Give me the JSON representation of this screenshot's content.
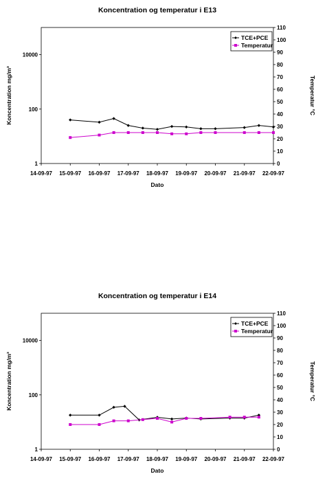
{
  "chart_data": [
    {
      "type": "line",
      "title": "Koncentration og temperatur i E13",
      "xlabel": "Dato",
      "ylabel": "Koncentration mg/m³",
      "y2label": "Temperatur °C",
      "x_ticks": [
        "14-09-97",
        "15-09-97",
        "16-09-97",
        "17-09-97",
        "18-09-97",
        "19-09-97",
        "20-09-97",
        "21-09-97",
        "22-09-97"
      ],
      "xlim": [
        "1997-09-14",
        "1997-09-22"
      ],
      "ylim": [
        1,
        100000
      ],
      "yscale": "log",
      "y_ticks": [
        "1",
        "100",
        "10000"
      ],
      "y2lim": [
        0,
        110
      ],
      "y2_ticks": [
        0,
        10,
        20,
        30,
        40,
        50,
        60,
        70,
        80,
        90,
        100,
        110
      ],
      "legend": "top-right",
      "series": [
        {
          "name": "TCE+PCE",
          "axis": "left",
          "color": "#000000",
          "marker": "diamond",
          "x": [
            "1997-09-15T00:00",
            "1997-09-16T00:00",
            "1997-09-16T12:00",
            "1997-09-17T00:00",
            "1997-09-17T12:00",
            "1997-09-18T00:00",
            "1997-09-18T12:00",
            "1997-09-19T00:00",
            "1997-09-19T12:00",
            "1997-09-20T00:00",
            "1997-09-21T00:00",
            "1997-09-21T12:00",
            "1997-09-22T00:00"
          ],
          "values": [
            40,
            33,
            45,
            25,
            20,
            18,
            23,
            22,
            19,
            19,
            21,
            25,
            22
          ]
        },
        {
          "name": "Temperatur",
          "axis": "right",
          "color": "#cc00cc",
          "marker": "square",
          "x": [
            "1997-09-15T00:00",
            "1997-09-16T00:00",
            "1997-09-16T12:00",
            "1997-09-17T00:00",
            "1997-09-17T12:00",
            "1997-09-18T00:00",
            "1997-09-18T12:00",
            "1997-09-19T00:00",
            "1997-09-19T12:00",
            "1997-09-20T00:00",
            "1997-09-21T00:00",
            "1997-09-21T12:00",
            "1997-09-22T00:00"
          ],
          "values": [
            21,
            23,
            25,
            25,
            25,
            25,
            24,
            24,
            25,
            25,
            25,
            25,
            25
          ]
        }
      ]
    },
    {
      "type": "line",
      "title": "Koncentration og temperatur i E14",
      "xlabel": "Dato",
      "ylabel": "Koncentration mg/m³",
      "y2label": "Temperatur °C",
      "x_ticks": [
        "14-09-97",
        "15-09-97",
        "16-09-97",
        "17-09-97",
        "18-09-97",
        "19-09-97",
        "20-09-97",
        "21-09-97",
        "22-09-97"
      ],
      "xlim": [
        "1997-09-14",
        "1997-09-22"
      ],
      "ylim": [
        1,
        100000
      ],
      "yscale": "log",
      "y_ticks": [
        "1",
        "100",
        "10000"
      ],
      "y2lim": [
        0,
        110
      ],
      "y2_ticks": [
        0,
        10,
        20,
        30,
        40,
        50,
        60,
        70,
        80,
        90,
        100,
        110
      ],
      "legend": "top-right",
      "series": [
        {
          "name": "TCE+PCE",
          "axis": "left",
          "color": "#000000",
          "marker": "diamond",
          "x": [
            "1997-09-15T00:00",
            "1997-09-16T00:00",
            "1997-09-16T12:00",
            "1997-09-16T21:00",
            "1997-09-17T09:00",
            "1997-09-18T00:00",
            "1997-09-18T12:00",
            "1997-09-19T00:00",
            "1997-09-19T12:00",
            "1997-09-20T12:00",
            "1997-09-21T00:00",
            "1997-09-21T12:00"
          ],
          "values": [
            18,
            18,
            35,
            38,
            12,
            15,
            13,
            14,
            13,
            14,
            14,
            18
          ]
        },
        {
          "name": "Temperatur",
          "axis": "right",
          "color": "#cc00cc",
          "marker": "square",
          "x": [
            "1997-09-15T00:00",
            "1997-09-16T00:00",
            "1997-09-16T12:00",
            "1997-09-17T00:00",
            "1997-09-17T12:00",
            "1997-09-18T00:00",
            "1997-09-18T12:00",
            "1997-09-19T00:00",
            "1997-09-19T12:00",
            "1997-09-20T12:00",
            "1997-09-21T00:00",
            "1997-09-21T12:00"
          ],
          "values": [
            20,
            20,
            23,
            23,
            24,
            25,
            22,
            25,
            25,
            26,
            26,
            26
          ]
        }
      ]
    }
  ]
}
